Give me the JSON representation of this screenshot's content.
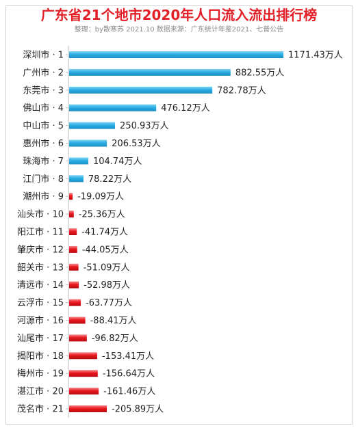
{
  "title": "广东省21个地市2020年人口流入流出排行榜",
  "subtitle": "整理：by散寒苏  2021.10  数据来源：广东统计年鉴2021、七普公告",
  "colors": {
    "title": "#e21f26",
    "positive_bar": "#29aee3",
    "negative_bar": "#e8191f",
    "axis": "#bdbdbd",
    "text": "#222222",
    "subtitle": "#8a8a8a"
  },
  "chart_data": {
    "type": "bar",
    "orientation": "horizontal",
    "title": "广东省21个地市2020年人口流入流出排行榜",
    "subtitle": "整理：by散寒苏  2021.10  数据来源：广东统计年鉴2021、七普公告",
    "unit": "万人",
    "categories": [
      "深圳市 · 1",
      "广州市 · 2",
      "东莞市 · 3",
      "佛山市 · 4",
      "中山市 · 5",
      "惠州市 · 6",
      "珠海市 · 7",
      "江门市 · 8",
      "潮州市 · 9",
      "汕头市 · 10",
      "阳江市 · 11",
      "肇庆市 · 12",
      "韶关市 · 13",
      "清远市 · 14",
      "云浮市 · 15",
      "河源市 · 16",
      "汕尾市 · 17",
      "揭阳市 · 18",
      "梅州市 · 19",
      "湛江市 · 20",
      "茂名市 · 21"
    ],
    "values": [
      1171.43,
      882.55,
      782.78,
      476.12,
      250.93,
      206.53,
      104.74,
      78.22,
      -19.09,
      -25.36,
      -41.74,
      -44.05,
      -51.09,
      -52.98,
      -63.77,
      -88.41,
      -96.82,
      -153.41,
      -156.64,
      -161.46,
      -205.89
    ],
    "value_labels": [
      "1171.43万人",
      "882.55万人",
      "782.78万人",
      "476.12万人",
      "250.93万人",
      "206.53万人",
      "104.74万人",
      "78.22万人",
      "-19.09万人",
      "-25.36万人",
      "-41.74万人",
      "-44.05万人",
      "-51.09万人",
      "-52.98万人",
      "-63.77万人",
      "-88.41万人",
      "-96.82万人",
      "-153.41万人",
      "-156.64万人",
      "-161.46万人",
      "-205.89万人"
    ],
    "negative_bars_drawn_rightward": true,
    "grid": false,
    "legend": "none"
  }
}
